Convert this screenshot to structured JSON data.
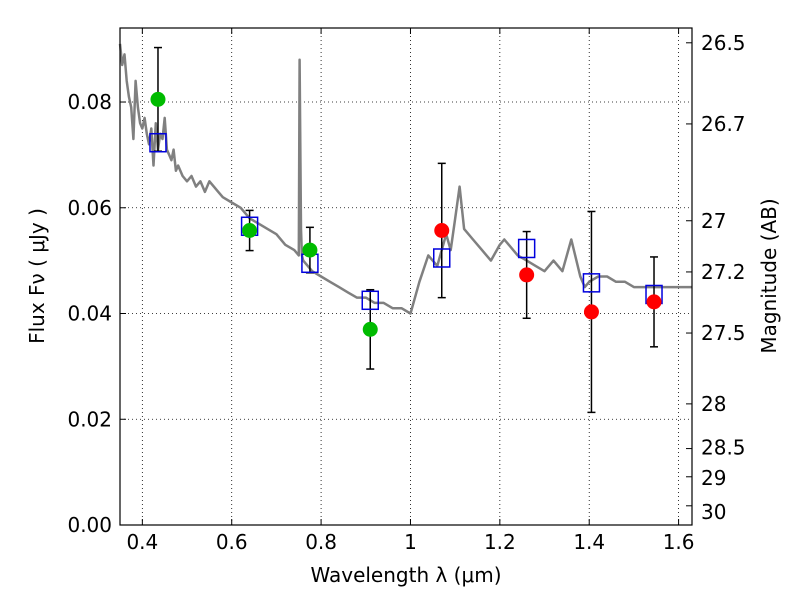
{
  "chart_data": {
    "type": "scatter",
    "xlabel": "Wavelength  λ (μm)",
    "ylabel": "Flux  Fν  ( μJy )",
    "y2label": "Magnitude (AB)",
    "xlim": [
      0.35,
      1.63
    ],
    "ylim": [
      0.0,
      0.094
    ],
    "xticks": [
      0.4,
      0.6,
      0.8,
      1.0,
      1.2,
      1.4,
      1.6
    ],
    "xtick_labels": [
      "0.4",
      "0.6",
      "0.8",
      "1",
      "1.2",
      "1.4",
      "1.6"
    ],
    "yticks": [
      0.0,
      0.02,
      0.04,
      0.06,
      0.08
    ],
    "ytick_labels": [
      "0.00",
      "0.02",
      "0.04",
      "0.06",
      "0.08"
    ],
    "y2ticks": [
      26.5,
      26.7,
      27.0,
      27.2,
      27.5,
      28.0,
      28.5,
      29.0,
      30.0
    ],
    "y2tick_labels": [
      "26.5",
      "26.7",
      "27",
      "27.2",
      "27.5",
      "28",
      "28.5",
      "29",
      "30"
    ],
    "grid": true,
    "colors": {
      "model": "#808080",
      "optical": "#00bb00",
      "infrared": "#ff0000",
      "model_points": "#0000dd",
      "errorbar": "#000000"
    },
    "model_spectrum": {
      "x": [
        0.35,
        0.355,
        0.36,
        0.365,
        0.37,
        0.375,
        0.38,
        0.385,
        0.39,
        0.395,
        0.4,
        0.405,
        0.41,
        0.415,
        0.42,
        0.425,
        0.43,
        0.435,
        0.44,
        0.445,
        0.45,
        0.455,
        0.46,
        0.465,
        0.47,
        0.475,
        0.48,
        0.49,
        0.5,
        0.51,
        0.52,
        0.53,
        0.54,
        0.55,
        0.56,
        0.57,
        0.58,
        0.6,
        0.62,
        0.64,
        0.66,
        0.68,
        0.7,
        0.72,
        0.74,
        0.75,
        0.752,
        0.755,
        0.757,
        0.76,
        0.78,
        0.8,
        0.82,
        0.84,
        0.86,
        0.88,
        0.9,
        0.92,
        0.94,
        0.96,
        0.98,
        1.0,
        1.02,
        1.04,
        1.06,
        1.08,
        1.09,
        1.1,
        1.11,
        1.12,
        1.14,
        1.16,
        1.18,
        1.2,
        1.21,
        1.22,
        1.24,
        1.26,
        1.28,
        1.3,
        1.32,
        1.34,
        1.36,
        1.38,
        1.39,
        1.4,
        1.42,
        1.44,
        1.46,
        1.48,
        1.5,
        1.52,
        1.54,
        1.56,
        1.58,
        1.6,
        1.63
      ],
      "y": [
        0.091,
        0.087,
        0.089,
        0.084,
        0.081,
        0.079,
        0.073,
        0.084,
        0.079,
        0.076,
        0.075,
        0.077,
        0.074,
        0.072,
        0.075,
        0.068,
        0.076,
        0.071,
        0.074,
        0.073,
        0.077,
        0.071,
        0.07,
        0.069,
        0.071,
        0.067,
        0.068,
        0.066,
        0.065,
        0.066,
        0.064,
        0.065,
        0.063,
        0.065,
        0.064,
        0.063,
        0.062,
        0.061,
        0.06,
        0.058,
        0.057,
        0.056,
        0.055,
        0.053,
        0.052,
        0.051,
        0.088,
        0.056,
        0.051,
        0.05,
        0.048,
        0.047,
        0.046,
        0.045,
        0.044,
        0.043,
        0.043,
        0.042,
        0.042,
        0.041,
        0.041,
        0.04,
        0.046,
        0.051,
        0.049,
        0.055,
        0.052,
        0.058,
        0.064,
        0.056,
        0.054,
        0.052,
        0.05,
        0.053,
        0.054,
        0.053,
        0.051,
        0.05,
        0.049,
        0.048,
        0.05,
        0.048,
        0.054,
        0.047,
        0.045,
        0.046,
        0.047,
        0.047,
        0.046,
        0.046,
        0.045,
        0.045,
        0.045,
        0.045,
        0.045,
        0.045,
        0.045
      ]
    },
    "model_points": {
      "x": [
        0.435,
        0.64,
        0.775,
        0.91,
        1.07,
        1.26,
        1.405,
        1.545
      ],
      "y": [
        0.0723,
        0.0565,
        0.0495,
        0.0425,
        0.0505,
        0.0523,
        0.0458,
        0.0436
      ]
    },
    "optical_measurements": {
      "x": [
        0.435,
        0.64,
        0.775,
        0.91
      ],
      "y": [
        0.0805,
        0.0557,
        0.052,
        0.037
      ],
      "err": [
        0.0098,
        0.0038,
        0.0043,
        0.0075
      ]
    },
    "infrared_measurements": {
      "x": [
        1.07,
        1.26,
        1.405,
        1.545
      ],
      "y": [
        0.0557,
        0.0473,
        0.0403,
        0.0422
      ],
      "err": [
        0.0127,
        0.0082,
        0.019,
        0.0085
      ]
    }
  }
}
